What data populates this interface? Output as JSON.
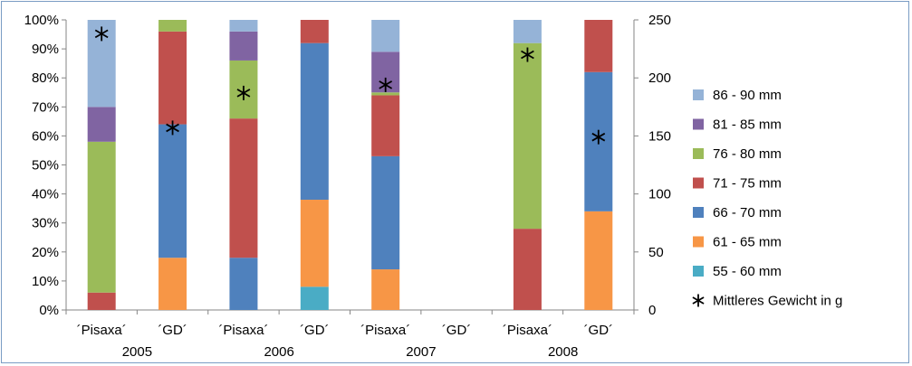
{
  "chart_data": {
    "type": "bar",
    "stacked": true,
    "percent_stacked": true,
    "categories": [
      "´Pisaxa´",
      "´GD´",
      "´Pisaxa´",
      "´GD´",
      "´Pisaxa´",
      "´GD´",
      "´Pisaxa´",
      "´GD´"
    ],
    "groups": [
      {
        "label": "2005",
        "categories": [
          0,
          1
        ]
      },
      {
        "label": "2006",
        "categories": [
          2,
          3
        ]
      },
      {
        "label": "2007",
        "categories": [
          4,
          5
        ]
      },
      {
        "label": "2008",
        "categories": [
          6,
          7
        ]
      }
    ],
    "series": [
      {
        "name": "55 - 60 mm",
        "color": "#4aacc5",
        "values": [
          0,
          0,
          0,
          8,
          0,
          0,
          0,
          0
        ]
      },
      {
        "name": "61 - 65 mm",
        "color": "#f79646",
        "values": [
          0,
          18,
          0,
          30,
          14,
          0,
          0,
          34
        ]
      },
      {
        "name": "66 - 70 mm",
        "color": "#4f81bd",
        "values": [
          0,
          46,
          18,
          54,
          39,
          0,
          0,
          48
        ]
      },
      {
        "name": "71 - 75 mm",
        "color": "#c0504d",
        "values": [
          6,
          32,
          48,
          8,
          21,
          0,
          28,
          18
        ]
      },
      {
        "name": "76 - 80 mm",
        "color": "#9bbb59",
        "values": [
          52,
          4,
          20,
          0,
          1,
          0,
          64,
          0
        ]
      },
      {
        "name": "81 - 85 mm",
        "color": "#8064a2",
        "values": [
          12,
          0,
          10,
          0,
          14,
          0,
          0,
          0
        ]
      },
      {
        "name": "86 - 90 mm",
        "color": "#95b3d7",
        "values": [
          30,
          0,
          4,
          0,
          11,
          0,
          8,
          0
        ]
      }
    ],
    "line_series": {
      "name": "Mittleres Gewicht in g",
      "axis": "secondary",
      "marker": "asterisk",
      "values": [
        238,
        157,
        187,
        null,
        194,
        null,
        220,
        149
      ]
    },
    "legend_order": [
      "86 - 90 mm",
      "81 - 85 mm",
      "76 - 80 mm",
      "71 - 75 mm",
      "66 - 70 mm",
      "61 - 65 mm",
      "55 - 60 mm",
      "Mittleres Gewicht in g"
    ],
    "y_left": {
      "ticks": [
        "0%",
        "10%",
        "20%",
        "30%",
        "40%",
        "50%",
        "60%",
        "70%",
        "80%",
        "90%",
        "100%"
      ],
      "range": [
        0,
        100
      ]
    },
    "y_right": {
      "ticks": [
        "0",
        "50",
        "100",
        "150",
        "200",
        "250"
      ],
      "range": [
        0,
        250
      ]
    },
    "legend_position": "right",
    "grid": false
  }
}
